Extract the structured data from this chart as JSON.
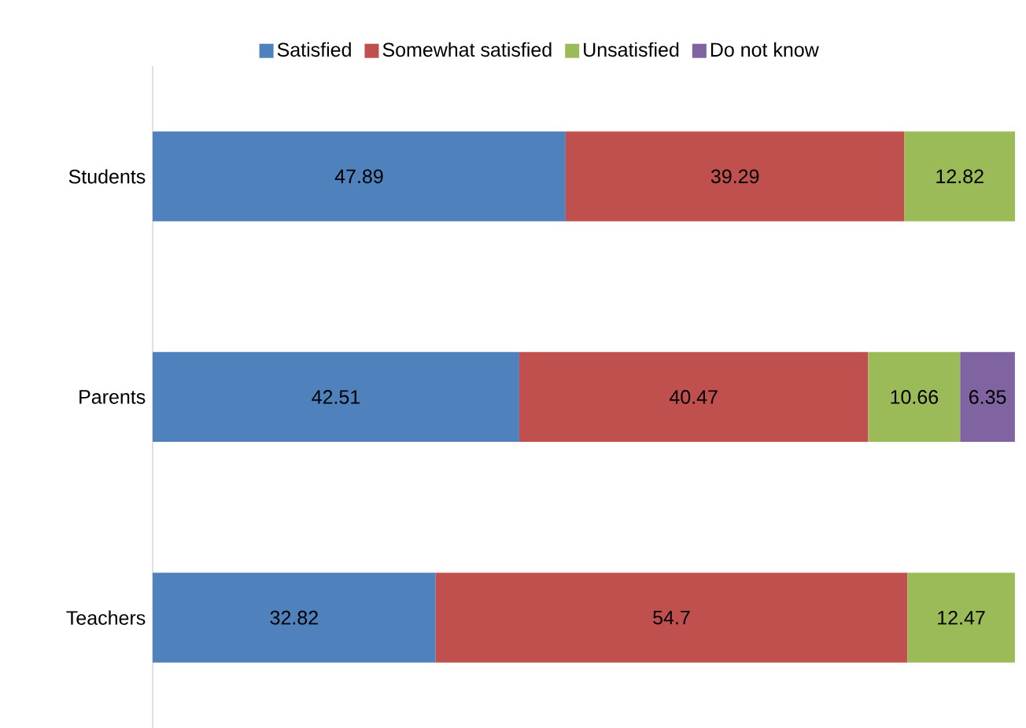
{
  "chart_data": {
    "type": "bar",
    "orientation": "horizontal",
    "stacked": true,
    "data_labels": true,
    "legend": "top",
    "categories": [
      "Students",
      "Parents",
      "Teachers"
    ],
    "series": [
      {
        "name": "Satisfied",
        "color": "#4f81bd",
        "values": [
          47.89,
          42.51,
          32.82
        ]
      },
      {
        "name": "Somewhat satisfied",
        "color": "#c0504d",
        "values": [
          39.29,
          40.47,
          54.7
        ]
      },
      {
        "name": "Unsatisfied",
        "color": "#9bbb59",
        "values": [
          12.82,
          10.66,
          12.47
        ]
      },
      {
        "name": "Do not know",
        "color": "#8064a2",
        "values": [
          null,
          6.35,
          null
        ]
      }
    ]
  }
}
